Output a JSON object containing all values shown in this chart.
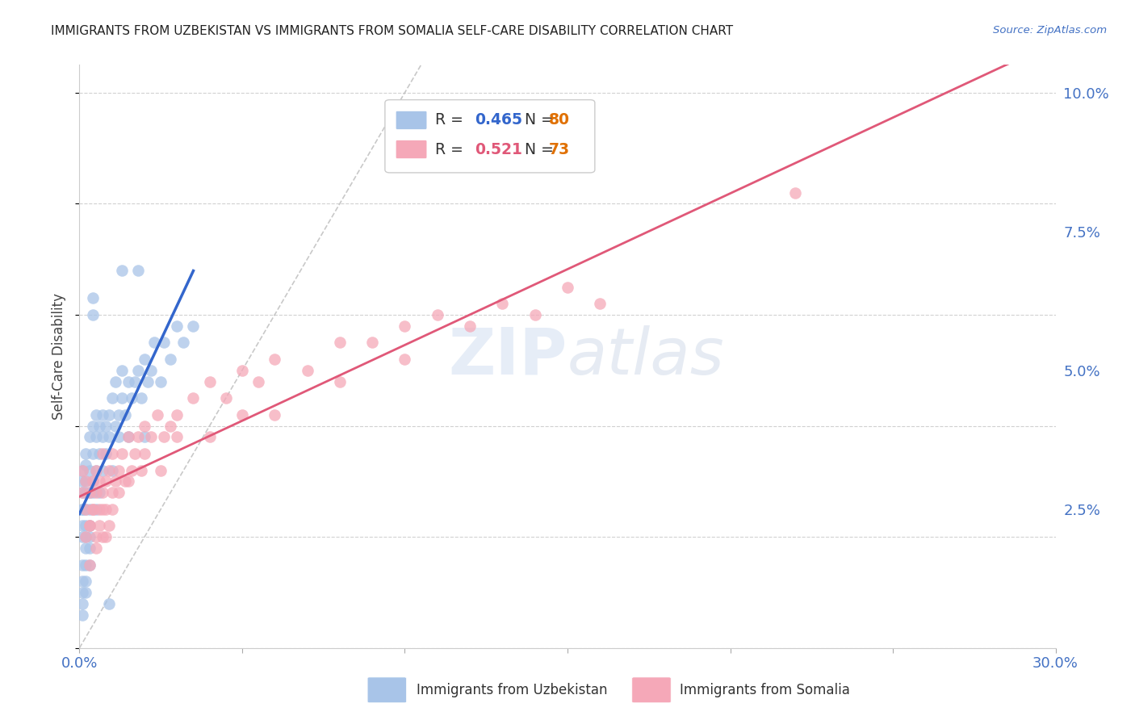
{
  "title": "IMMIGRANTS FROM UZBEKISTAN VS IMMIGRANTS FROM SOMALIA SELF-CARE DISABILITY CORRELATION CHART",
  "source": "Source: ZipAtlas.com",
  "ylabel": "Self-Care Disability",
  "xlim": [
    0.0,
    0.3
  ],
  "ylim": [
    0.0,
    0.105
  ],
  "xticks": [
    0.0,
    0.05,
    0.1,
    0.15,
    0.2,
    0.25,
    0.3
  ],
  "xticklabels": [
    "0.0%",
    "",
    "",
    "",
    "",
    "",
    "30.0%"
  ],
  "yticks_right": [
    0.025,
    0.05,
    0.075,
    0.1
  ],
  "yticklabels_right": [
    "2.5%",
    "5.0%",
    "7.5%",
    "10.0%"
  ],
  "color_uzbekistan": "#a8c4e8",
  "color_uzbekistan_line": "#3366cc",
  "color_somalia": "#f5a8b8",
  "color_somalia_line": "#e05878",
  "color_diagonal": "#bbbbbb",
  "background_color": "#ffffff",
  "grid_color": "#cccccc",
  "title_color": "#222222",
  "axis_label_color": "#444444",
  "tick_color": "#4472c4",
  "legend_N_color": "#e07000",
  "watermark_color": "#dce8f5",
  "uzbekistan_x": [
    0.001,
    0.001,
    0.001,
    0.001,
    0.001,
    0.002,
    0.002,
    0.002,
    0.002,
    0.002,
    0.002,
    0.003,
    0.003,
    0.003,
    0.003,
    0.003,
    0.004,
    0.004,
    0.004,
    0.004,
    0.005,
    0.005,
    0.005,
    0.005,
    0.006,
    0.006,
    0.006,
    0.007,
    0.007,
    0.007,
    0.008,
    0.008,
    0.009,
    0.009,
    0.01,
    0.01,
    0.011,
    0.011,
    0.012,
    0.012,
    0.013,
    0.013,
    0.014,
    0.015,
    0.015,
    0.016,
    0.017,
    0.018,
    0.019,
    0.02,
    0.02,
    0.021,
    0.022,
    0.023,
    0.025,
    0.026,
    0.028,
    0.03,
    0.032,
    0.035,
    0.001,
    0.002,
    0.003,
    0.001,
    0.002,
    0.001,
    0.002,
    0.003,
    0.001,
    0.002,
    0.004,
    0.018,
    0.004,
    0.013,
    0.001,
    0.002,
    0.003,
    0.001,
    0.009,
    0.001
  ],
  "uzbekistan_y": [
    0.03,
    0.025,
    0.028,
    0.022,
    0.032,
    0.028,
    0.03,
    0.025,
    0.033,
    0.02,
    0.035,
    0.028,
    0.032,
    0.025,
    0.038,
    0.022,
    0.03,
    0.035,
    0.028,
    0.04,
    0.032,
    0.038,
    0.025,
    0.042,
    0.035,
    0.04,
    0.028,
    0.038,
    0.042,
    0.032,
    0.04,
    0.035,
    0.042,
    0.038,
    0.045,
    0.032,
    0.04,
    0.048,
    0.042,
    0.038,
    0.045,
    0.05,
    0.042,
    0.048,
    0.038,
    0.045,
    0.048,
    0.05,
    0.045,
    0.052,
    0.038,
    0.048,
    0.05,
    0.055,
    0.048,
    0.055,
    0.052,
    0.058,
    0.055,
    0.058,
    0.015,
    0.018,
    0.02,
    0.012,
    0.015,
    0.01,
    0.012,
    0.015,
    0.008,
    0.01,
    0.06,
    0.068,
    0.063,
    0.068,
    0.02,
    0.022,
    0.018,
    0.025,
    0.008,
    0.006
  ],
  "somalia_x": [
    0.001,
    0.001,
    0.002,
    0.002,
    0.003,
    0.003,
    0.004,
    0.004,
    0.005,
    0.005,
    0.006,
    0.006,
    0.007,
    0.007,
    0.008,
    0.008,
    0.009,
    0.01,
    0.01,
    0.011,
    0.012,
    0.013,
    0.014,
    0.015,
    0.016,
    0.017,
    0.018,
    0.019,
    0.02,
    0.022,
    0.024,
    0.026,
    0.028,
    0.03,
    0.035,
    0.04,
    0.045,
    0.05,
    0.055,
    0.06,
    0.07,
    0.08,
    0.09,
    0.1,
    0.11,
    0.12,
    0.13,
    0.14,
    0.15,
    0.16,
    0.002,
    0.003,
    0.004,
    0.005,
    0.006,
    0.007,
    0.008,
    0.009,
    0.01,
    0.012,
    0.015,
    0.02,
    0.025,
    0.03,
    0.04,
    0.05,
    0.06,
    0.08,
    0.1,
    0.22,
    0.003,
    0.005,
    0.007
  ],
  "somalia_y": [
    0.028,
    0.032,
    0.025,
    0.03,
    0.028,
    0.022,
    0.03,
    0.025,
    0.028,
    0.032,
    0.025,
    0.03,
    0.028,
    0.035,
    0.03,
    0.025,
    0.032,
    0.028,
    0.035,
    0.03,
    0.032,
    0.035,
    0.03,
    0.038,
    0.032,
    0.035,
    0.038,
    0.032,
    0.04,
    0.038,
    0.042,
    0.038,
    0.04,
    0.042,
    0.045,
    0.048,
    0.045,
    0.05,
    0.048,
    0.052,
    0.05,
    0.055,
    0.055,
    0.058,
    0.06,
    0.058,
    0.062,
    0.06,
    0.065,
    0.062,
    0.02,
    0.022,
    0.025,
    0.02,
    0.022,
    0.025,
    0.02,
    0.022,
    0.025,
    0.028,
    0.03,
    0.035,
    0.032,
    0.038,
    0.038,
    0.042,
    0.042,
    0.048,
    0.052,
    0.082,
    0.015,
    0.018,
    0.02
  ]
}
